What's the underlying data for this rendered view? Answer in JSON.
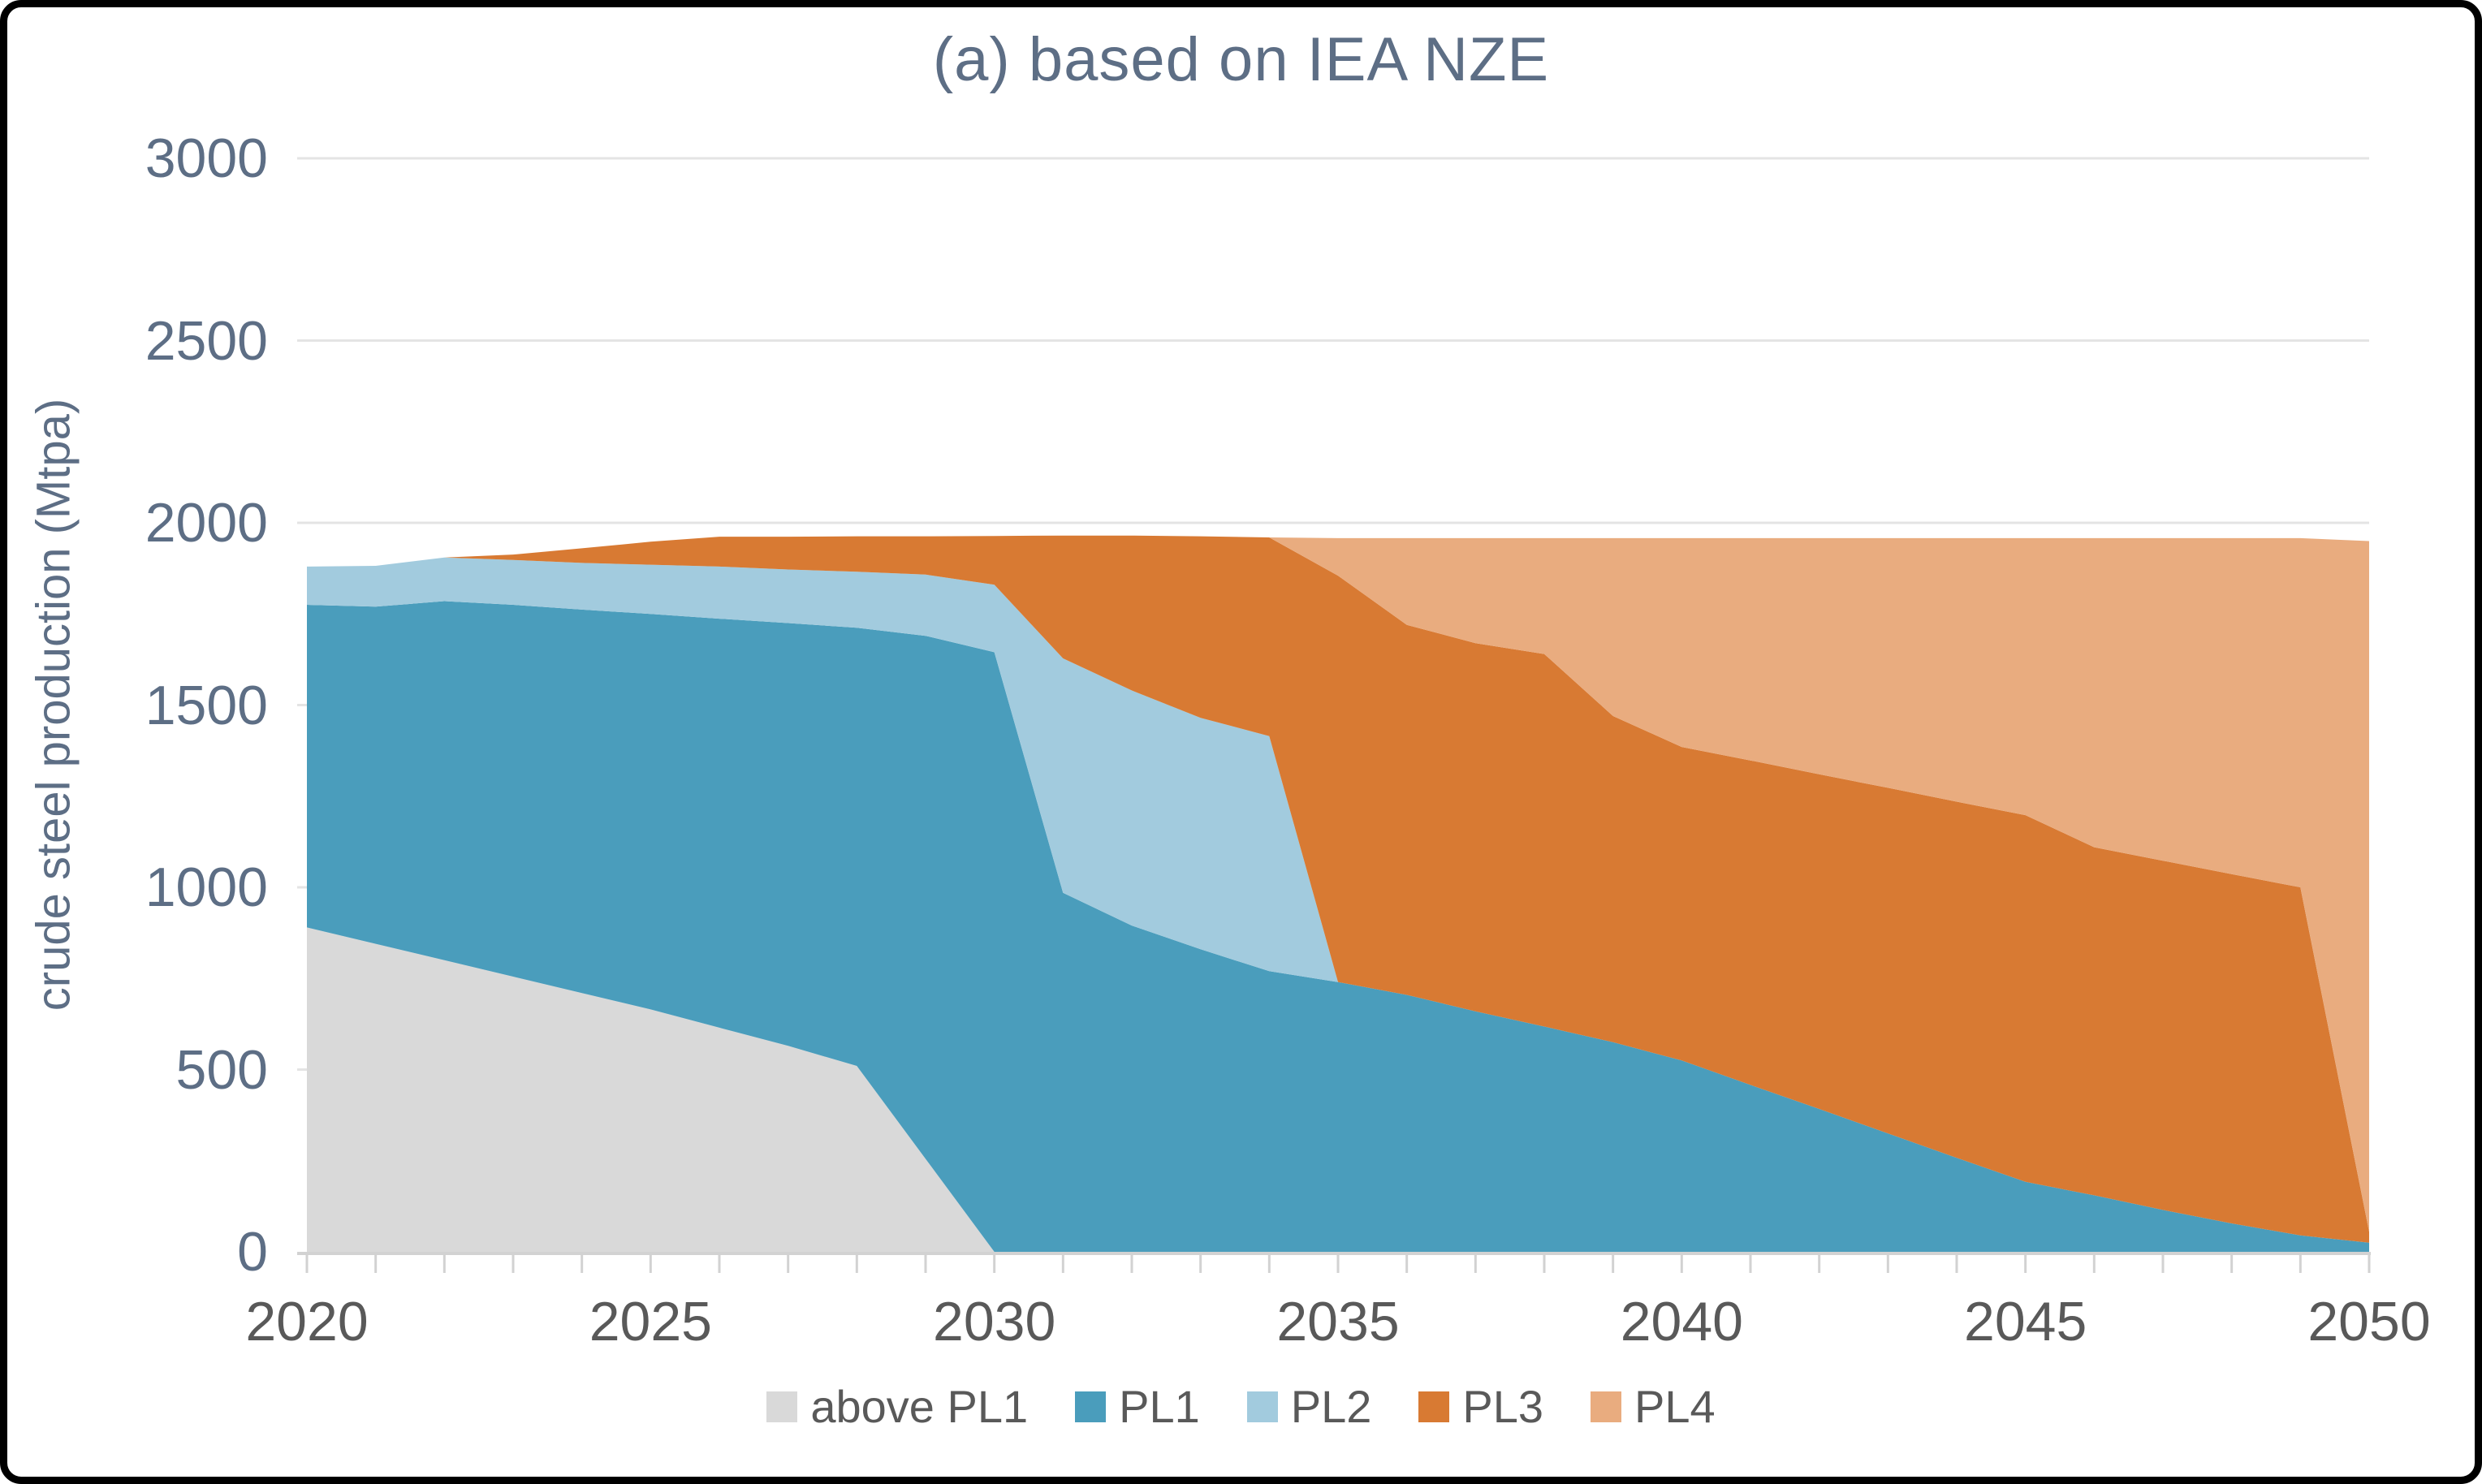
{
  "chart_data": {
    "type": "area",
    "stacked": true,
    "title": "(a) based on IEA NZE",
    "xlabel": "",
    "ylabel": "crude steel production (Mtpa)",
    "x": [
      2020,
      2021,
      2022,
      2023,
      2024,
      2025,
      2026,
      2027,
      2028,
      2029,
      2030,
      2031,
      2032,
      2033,
      2034,
      2035,
      2036,
      2037,
      2038,
      2039,
      2040,
      2041,
      2042,
      2043,
      2044,
      2045,
      2046,
      2047,
      2048,
      2049,
      2050
    ],
    "xticks_labeled": [
      2020,
      2025,
      2030,
      2035,
      2040,
      2045,
      2050
    ],
    "yticks": [
      0,
      500,
      1000,
      1500,
      2000,
      2500,
      3000
    ],
    "ylim": [
      0,
      3000
    ],
    "grid": "horizontal",
    "legend_position": "bottom",
    "series": [
      {
        "name": "above PL1",
        "color": "#d9d9d9",
        "values": [
          890,
          845,
          800,
          755,
          710,
          665,
          615,
          565,
          510,
          255,
          0,
          0,
          0,
          0,
          0,
          0,
          0,
          0,
          0,
          0,
          0,
          0,
          0,
          0,
          0,
          0,
          0,
          0,
          0,
          0,
          0
        ]
      },
      {
        "name": "PL1",
        "color": "#4a9dbc",
        "values": [
          885,
          925,
          985,
          1020,
          1052,
          1085,
          1122,
          1160,
          1202,
          1435,
          1645,
          985,
          895,
          830,
          770,
          740,
          705,
          660,
          618,
          575,
          525,
          458,
          392,
          325,
          258,
          192,
          155,
          115,
          78,
          45,
          25
        ]
      },
      {
        "name": "PL2",
        "color": "#a2cbde",
        "values": [
          105,
          112,
          120,
          123,
          128,
          135,
          143,
          147,
          154,
          168,
          185,
          643,
          645,
          635,
          645,
          0,
          0,
          0,
          0,
          0,
          0,
          0,
          0,
          0,
          0,
          0,
          0,
          0,
          0,
          0,
          0
        ]
      },
      {
        "name": "PL3",
        "color": "#d87a33",
        "values": [
          0,
          0,
          0,
          15,
          40,
          63,
          82,
          90,
          97,
          105,
          134,
          337,
          425,
          498,
          545,
          1115,
          1015,
          1010,
          1022,
          895,
          860,
          890,
          918,
          948,
          977,
          1006,
          955,
          958,
          958,
          955,
          30
        ]
      },
      {
        "name": "PL4",
        "color": "#e9ac7f",
        "values": [
          0,
          0,
          0,
          0,
          0,
          0,
          0,
          0,
          0,
          0,
          0,
          0,
          0,
          0,
          0,
          103,
          238,
          288,
          318,
          488,
          573,
          610,
          648,
          685,
          723,
          760,
          848,
          885,
          922,
          958,
          1895
        ]
      }
    ]
  },
  "styles": {
    "title_color": "#5d6e85",
    "axis_title_color": "#5d6e85",
    "y_tick_color": "#5d6e85",
    "x_tick_color": "#595959",
    "legend_text_color": "#595959",
    "grid_color": "#e4e4e4",
    "axis_line_color": "#d2d2d2",
    "tick_mark_color": "#d2d2d2",
    "background": "#ffffff",
    "frame_border_color": "#000000"
  }
}
